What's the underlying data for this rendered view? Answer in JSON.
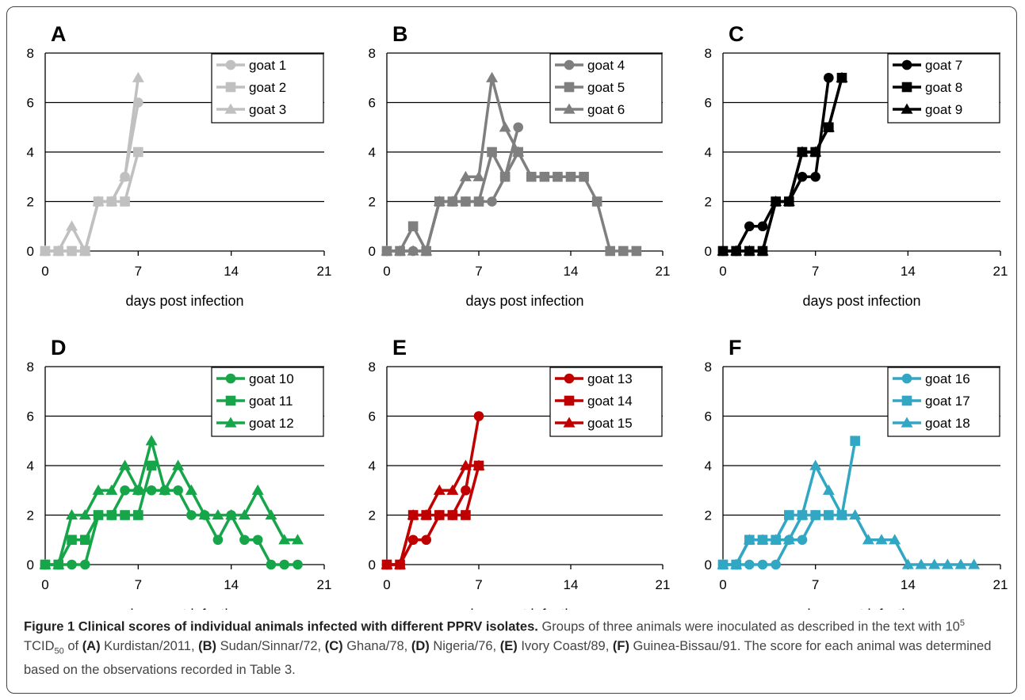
{
  "chart_data": [
    {
      "type": "line",
      "panel_label": "A",
      "xlabel": "days post infection",
      "xticks": [
        0,
        7,
        14,
        21
      ],
      "yticks": [
        0,
        2,
        4,
        6,
        8
      ],
      "xlim": [
        0,
        21
      ],
      "ylim": [
        0,
        8
      ],
      "grid": "horizontal",
      "legend_position": "top-right",
      "color": "#c0c0c0",
      "series": [
        {
          "name": "goat 1",
          "marker": "circle",
          "x": [
            0,
            1,
            2,
            3,
            4,
            5,
            6,
            7
          ],
          "y": [
            0,
            0,
            0,
            0,
            2,
            2,
            3,
            6
          ]
        },
        {
          "name": "goat 2",
          "marker": "square",
          "x": [
            0,
            1,
            2,
            3,
            4,
            5,
            6,
            7
          ],
          "y": [
            0,
            0,
            0,
            0,
            2,
            2,
            2,
            4
          ]
        },
        {
          "name": "goat 3",
          "marker": "triangle",
          "x": [
            0,
            1,
            2,
            3,
            4,
            5,
            6,
            7
          ],
          "y": [
            0,
            0,
            1,
            0,
            2,
            2,
            3,
            7
          ]
        }
      ]
    },
    {
      "type": "line",
      "panel_label": "B",
      "xlabel": "days post infection",
      "xticks": [
        0,
        7,
        14,
        21
      ],
      "yticks": [
        0,
        2,
        4,
        6,
        8
      ],
      "xlim": [
        0,
        21
      ],
      "ylim": [
        0,
        8
      ],
      "grid": "horizontal",
      "legend_position": "top-right",
      "color": "#7f7f7f",
      "series": [
        {
          "name": "goat 4",
          "marker": "circle",
          "x": [
            0,
            1,
            2,
            3,
            4,
            5,
            6,
            7,
            8,
            9,
            10
          ],
          "y": [
            0,
            0,
            0,
            0,
            2,
            2,
            2,
            2,
            2,
            3,
            5
          ]
        },
        {
          "name": "goat 5",
          "marker": "square",
          "x": [
            0,
            1,
            2,
            3,
            4,
            5,
            6,
            7,
            8,
            9,
            10,
            11,
            12,
            13,
            14,
            15,
            16,
            17,
            18,
            19
          ],
          "y": [
            0,
            0,
            1,
            0,
            2,
            2,
            2,
            2,
            4,
            3,
            4,
            3,
            3,
            3,
            3,
            3,
            2,
            0,
            0,
            0
          ]
        },
        {
          "name": "goat 6",
          "marker": "triangle",
          "x": [
            0,
            1,
            2,
            3,
            4,
            5,
            6,
            7,
            8,
            9,
            10
          ],
          "y": [
            0,
            0,
            0,
            0,
            2,
            2,
            3,
            3,
            7,
            5,
            4
          ]
        }
      ]
    },
    {
      "type": "line",
      "panel_label": "C",
      "xlabel": "days post infection",
      "xticks": [
        0,
        7,
        14,
        21
      ],
      "yticks": [
        0,
        2,
        4,
        6,
        8
      ],
      "xlim": [
        0,
        21
      ],
      "ylim": [
        0,
        8
      ],
      "grid": "horizontal",
      "legend_position": "top-right",
      "color": "#000000",
      "series": [
        {
          "name": "goat 7",
          "marker": "circle",
          "x": [
            0,
            1,
            2,
            3,
            4,
            5,
            6,
            7,
            8
          ],
          "y": [
            0,
            0,
            1,
            1,
            2,
            2,
            3,
            3,
            7
          ]
        },
        {
          "name": "goat 8",
          "marker": "square",
          "x": [
            0,
            1,
            2,
            3,
            4,
            5,
            6,
            7,
            8,
            9
          ],
          "y": [
            0,
            0,
            0,
            0,
            2,
            2,
            4,
            4,
            5,
            7
          ]
        },
        {
          "name": "goat 9",
          "marker": "triangle",
          "x": [
            0,
            1,
            2,
            3,
            4,
            5,
            6,
            7,
            8,
            9
          ],
          "y": [
            0,
            0,
            0,
            0,
            2,
            2,
            4,
            4,
            5,
            7
          ]
        }
      ]
    },
    {
      "type": "line",
      "panel_label": "D",
      "xlabel": "days post infection",
      "xticks": [
        0,
        7,
        14,
        21
      ],
      "yticks": [
        0,
        2,
        4,
        6,
        8
      ],
      "xlim": [
        0,
        21
      ],
      "ylim": [
        0,
        8
      ],
      "grid": "horizontal",
      "legend_position": "top-right",
      "color": "#17a54a",
      "series": [
        {
          "name": "goat 10",
          "marker": "circle",
          "x": [
            0,
            1,
            2,
            3,
            4,
            5,
            6,
            7,
            8,
            9,
            10,
            11,
            12,
            13,
            14,
            15,
            16,
            17,
            18,
            19
          ],
          "y": [
            0,
            0,
            0,
            0,
            2,
            2,
            3,
            3,
            3,
            3,
            3,
            2,
            2,
            1,
            2,
            1,
            1,
            0,
            0,
            0
          ]
        },
        {
          "name": "goat 11",
          "marker": "square",
          "x": [
            0,
            1,
            2,
            3,
            4,
            5,
            6,
            7,
            8
          ],
          "y": [
            0,
            0,
            1,
            1,
            2,
            2,
            2,
            2,
            4
          ]
        },
        {
          "name": "goat 12",
          "marker": "triangle",
          "x": [
            0,
            1,
            2,
            3,
            4,
            5,
            6,
            7,
            8,
            9,
            10,
            11,
            12,
            13,
            14,
            15,
            16,
            17,
            18,
            19
          ],
          "y": [
            0,
            0,
            2,
            2,
            3,
            3,
            4,
            3,
            5,
            3,
            4,
            3,
            2,
            2,
            2,
            2,
            3,
            2,
            1,
            1
          ]
        }
      ]
    },
    {
      "type": "line",
      "panel_label": "E",
      "xlabel": "days post infection",
      "xticks": [
        0,
        7,
        14,
        21
      ],
      "yticks": [
        0,
        2,
        4,
        6,
        8
      ],
      "xlim": [
        0,
        21
      ],
      "ylim": [
        0,
        8
      ],
      "grid": "horizontal",
      "legend_position": "top-right",
      "color": "#c00000",
      "series": [
        {
          "name": "goat 13",
          "marker": "circle",
          "x": [
            0,
            1,
            2,
            3,
            4,
            5,
            6,
            7
          ],
          "y": [
            0,
            0,
            1,
            1,
            2,
            2,
            3,
            6
          ]
        },
        {
          "name": "goat 14",
          "marker": "square",
          "x": [
            0,
            1,
            2,
            3,
            4,
            5,
            6,
            7
          ],
          "y": [
            0,
            0,
            2,
            2,
            2,
            2,
            2,
            4
          ]
        },
        {
          "name": "goat 15",
          "marker": "triangle",
          "x": [
            0,
            1,
            2,
            3,
            4,
            5,
            6,
            7
          ],
          "y": [
            0,
            0,
            2,
            2,
            3,
            3,
            4,
            4
          ]
        }
      ]
    },
    {
      "type": "line",
      "panel_label": "F",
      "xlabel": "days post infection",
      "xticks": [
        0,
        7,
        14,
        21
      ],
      "yticks": [
        0,
        2,
        4,
        6,
        8
      ],
      "xlim": [
        0,
        21
      ],
      "ylim": [
        0,
        8
      ],
      "grid": "horizontal",
      "legend_position": "top-right",
      "color": "#31a7c4",
      "series": [
        {
          "name": "goat 16",
          "marker": "circle",
          "x": [
            0,
            1,
            2,
            3,
            4,
            5,
            6,
            7
          ],
          "y": [
            0,
            0,
            0,
            0,
            0,
            1,
            1,
            2
          ]
        },
        {
          "name": "goat 17",
          "marker": "square",
          "x": [
            0,
            1,
            2,
            3,
            4,
            5,
            6,
            7,
            8,
            9,
            10
          ],
          "y": [
            0,
            0,
            1,
            1,
            1,
            2,
            2,
            2,
            2,
            2,
            5
          ]
        },
        {
          "name": "goat 18",
          "marker": "triangle",
          "x": [
            0,
            1,
            2,
            3,
            4,
            5,
            6,
            7,
            8,
            9,
            10,
            11,
            12,
            13,
            14,
            15,
            16,
            17,
            18,
            19
          ],
          "y": [
            0,
            0,
            1,
            1,
            1,
            1,
            2,
            4,
            3,
            2,
            2,
            1,
            1,
            1,
            0,
            0,
            0,
            0,
            0,
            0
          ]
        }
      ]
    }
  ],
  "caption": {
    "title": "Figure 1 Clinical scores of individual animals infected with different PPRV isolates.",
    "text_a": " Groups of three animals were inoculated as described in the text with 10",
    "sup": "5",
    "text_b": " TCID",
    "sub": "50",
    "text_c": " of ",
    "items": [
      {
        "label": "(A)",
        "name": " Kurdistan/2011, "
      },
      {
        "label": "(B)",
        "name": " Sudan/Sinnar/72, "
      },
      {
        "label": "(C)",
        "name": " Ghana/78, "
      },
      {
        "label": "(D)",
        "name": " Nigeria/76, "
      },
      {
        "label": "(E)",
        "name": " Ivory Coast/89, "
      },
      {
        "label": "(F)",
        "name": " Guinea-Bissau/91."
      }
    ],
    "text_d": " The score for each animal was determined based on the observations recorded in Table 3."
  }
}
